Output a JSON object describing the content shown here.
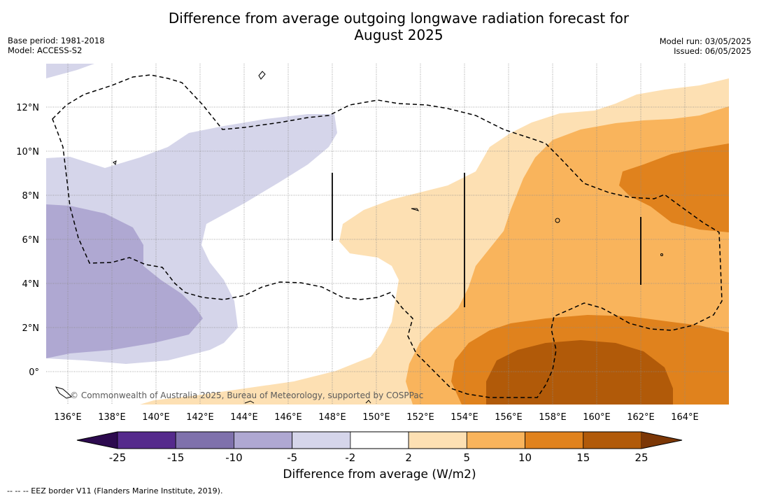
{
  "title_line1": "Difference from average outgoing longwave radiation forecast for",
  "title_line2": "August 2025",
  "base_period": "Base period: 1981-2018",
  "model": "Model: ACCESS-S2",
  "model_run": "Model run: 03/05/2025",
  "issued": "Issued: 06/05/2025",
  "copyright": "© Commonwealth of Australia 2025, Bureau of Meteorology, supported by COSPPac",
  "lon_labels": [
    "136°E",
    "138°E",
    "140°E",
    "142°E",
    "144°E",
    "146°E",
    "148°E",
    "150°E",
    "152°E",
    "154°E",
    "156°E",
    "158°E",
    "160°E",
    "162°E",
    "164°E"
  ],
  "lat_labels": [
    "12°N",
    "10°N",
    "8°N",
    "6°N",
    "4°N",
    "2°N",
    "0°"
  ],
  "colorbar": {
    "ticks": [
      "-25",
      "-15",
      "-10",
      "-5",
      "-2",
      "2",
      "5",
      "10",
      "15",
      "25"
    ],
    "colors": [
      "#552a8c",
      "#7f71ac",
      "#afa8d2",
      "#d5d5ea",
      "#ffffff",
      "#fde0b3",
      "#f9b45c",
      "#e0821d",
      "#b15a09"
    ],
    "under_color": "#2d0a4f",
    "over_color": "#7c3706",
    "label": "Difference from average (W/m2)"
  },
  "eez_note": "--  --  -- EEZ border V11 (Flanders Marine Institute, 2019)."
}
